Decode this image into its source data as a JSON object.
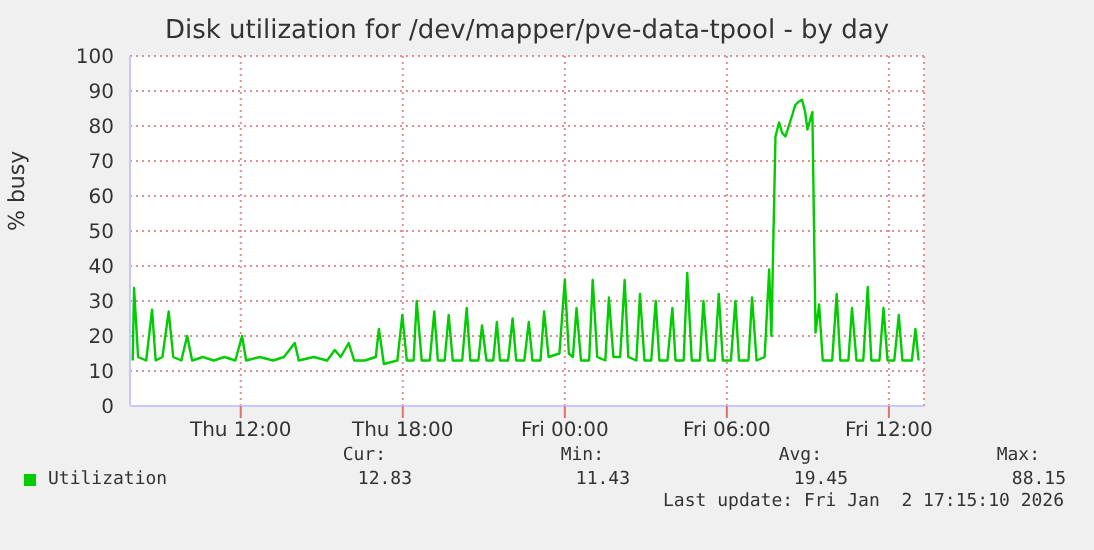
{
  "chart_data": {
    "type": "line",
    "title": "Disk utilization for /dev/mapper/pve-data-tpool - by day",
    "ylabel": "% busy",
    "xlim": [
      "2026-01-01T07:54",
      "2026-01-02T13:18"
    ],
    "xticks": [
      {
        "value": "2026-01-01T12:00",
        "label": "Thu 12:00"
      },
      {
        "value": "2026-01-01T18:00",
        "label": "Thu 18:00"
      },
      {
        "value": "2026-01-02T00:00",
        "label": "Fri 00:00"
      },
      {
        "value": "2026-01-02T06:00",
        "label": "Fri 06:00"
      },
      {
        "value": "2026-01-02T12:00",
        "label": "Fri 12:00"
      }
    ],
    "ylim": [
      0,
      100
    ],
    "yticks": [
      0,
      10,
      20,
      30,
      40,
      50,
      60,
      70,
      80,
      90,
      100
    ],
    "grid": true,
    "legend": "bottom",
    "marker": "none",
    "line_style": "solid",
    "annotations": [
      "Cur:",
      "Min:",
      "Avg:",
      "Max:",
      "12.83",
      "11.43",
      "19.45",
      "88.15",
      "Last update: Fri Jan  2 17:15:10 2026"
    ],
    "series": [
      {
        "name": "Utilization",
        "color": "#00cc00",
        "x": [
          "2026-01-01T08:00",
          "2026-01-01T08:03",
          "2026-01-01T08:12",
          "2026-01-01T08:30",
          "2026-01-01T08:43",
          "2026-01-01T08:51",
          "2026-01-01T09:06",
          "2026-01-01T09:20",
          "2026-01-01T09:30",
          "2026-01-01T09:48",
          "2026-01-01T10:01",
          "2026-01-01T10:12",
          "2026-01-01T10:36",
          "2026-01-01T11:00",
          "2026-01-01T11:24",
          "2026-01-01T11:48",
          "2026-01-01T12:03",
          "2026-01-01T12:12",
          "2026-01-01T12:42",
          "2026-01-01T13:12",
          "2026-01-01T13:36",
          "2026-01-01T14:00",
          "2026-01-01T14:09",
          "2026-01-01T14:42",
          "2026-01-01T15:12",
          "2026-01-01T15:29",
          "2026-01-01T15:42",
          "2026-01-01T16:00",
          "2026-01-01T16:12",
          "2026-01-01T16:36",
          "2026-01-01T17:00",
          "2026-01-01T17:07",
          "2026-01-01T17:18",
          "2026-01-01T17:48",
          "2026-01-01T17:59",
          "2026-01-01T18:09",
          "2026-01-01T18:24",
          "2026-01-01T18:31",
          "2026-01-01T18:42",
          "2026-01-01T19:00",
          "2026-01-01T19:10",
          "2026-01-01T19:18",
          "2026-01-01T19:33",
          "2026-01-01T19:42",
          "2026-01-01T19:51",
          "2026-01-01T20:12",
          "2026-01-01T20:22",
          "2026-01-01T20:30",
          "2026-01-01T20:48",
          "2026-01-01T20:56",
          "2026-01-01T21:06",
          "2026-01-01T21:21",
          "2026-01-01T21:29",
          "2026-01-01T21:36",
          "2026-01-01T21:54",
          "2026-01-01T22:04",
          "2026-01-01T22:12",
          "2026-01-01T22:30",
          "2026-01-01T22:40",
          "2026-01-01T22:48",
          "2026-01-01T23:06",
          "2026-01-01T23:14",
          "2026-01-01T23:24",
          "2026-01-01T23:48",
          "2026-01-02T00:00",
          "2026-01-02T00:09",
          "2026-01-02T00:18",
          "2026-01-02T00:26",
          "2026-01-02T00:36",
          "2026-01-02T00:54",
          "2026-01-02T01:02",
          "2026-01-02T01:12",
          "2026-01-02T01:30",
          "2026-01-02T01:38",
          "2026-01-02T01:48",
          "2026-01-02T02:03",
          "2026-01-02T02:13",
          "2026-01-02T02:21",
          "2026-01-02T02:39",
          "2026-01-02T02:47",
          "2026-01-02T02:57",
          "2026-01-02T03:12",
          "2026-01-02T03:22",
          "2026-01-02T03:30",
          "2026-01-02T03:48",
          "2026-01-02T03:59",
          "2026-01-02T04:06",
          "2026-01-02T04:24",
          "2026-01-02T04:32",
          "2026-01-02T04:42",
          "2026-01-02T05:00",
          "2026-01-02T05:08",
          "2026-01-02T05:18",
          "2026-01-02T05:33",
          "2026-01-02T05:42",
          "2026-01-02T05:51",
          "2026-01-02T06:09",
          "2026-01-02T06:19",
          "2026-01-02T06:27",
          "2026-01-02T06:48",
          "2026-01-02T06:56",
          "2026-01-02T07:06",
          "2026-01-02T07:24",
          "2026-01-02T07:34",
          "2026-01-02T07:39",
          "2026-01-02T07:48",
          "2026-01-02T07:56",
          "2026-01-02T08:03",
          "2026-01-02T08:10",
          "2026-01-02T08:25",
          "2026-01-02T08:32",
          "2026-01-02T08:40",
          "2026-01-02T08:47",
          "2026-01-02T08:54",
          "2026-01-02T08:59",
          "2026-01-02T09:10",
          "2026-01-02T09:17",
          "2026-01-02T09:25",
          "2026-01-02T09:33",
          "2026-01-02T09:54",
          "2026-01-02T10:04",
          "2026-01-02T10:12",
          "2026-01-02T10:30",
          "2026-01-02T10:38",
          "2026-01-02T10:48",
          "2026-01-02T11:03",
          "2026-01-02T11:13",
          "2026-01-02T11:21",
          "2026-01-02T11:39",
          "2026-01-02T11:48",
          "2026-01-02T11:57",
          "2026-01-02T12:12",
          "2026-01-02T12:22",
          "2026-01-02T12:30",
          "2026-01-02T12:51",
          "2026-01-02T12:59",
          "2026-01-02T13:06"
        ],
        "values": [
          13,
          33.7,
          14,
          13,
          27.5,
          13,
          14,
          27,
          14,
          13,
          20,
          13,
          14,
          13,
          14,
          13,
          20,
          13,
          14,
          13,
          14,
          18,
          13,
          14,
          13,
          16,
          14,
          18,
          13,
          13,
          14,
          22,
          12,
          13,
          26,
          13,
          13,
          30,
          13,
          13,
          27,
          13,
          13,
          26,
          13,
          13,
          28,
          13,
          13,
          23,
          13,
          13,
          24,
          13,
          13,
          25,
          13,
          13,
          24,
          13,
          13,
          27,
          14,
          15,
          36,
          15,
          14,
          28,
          13,
          13,
          36,
          14,
          13,
          31,
          14,
          14,
          36,
          14,
          13,
          32,
          13,
          13,
          30,
          13,
          13,
          28,
          13,
          13,
          38,
          13,
          13,
          30,
          13,
          13,
          32,
          13,
          13,
          30,
          13,
          13,
          31,
          13,
          14,
          39,
          20,
          77,
          81,
          78,
          77,
          83,
          86,
          87,
          87.5,
          84,
          79,
          84,
          21,
          29,
          13,
          13,
          32,
          13,
          13,
          28,
          13,
          13,
          34,
          13,
          13,
          28,
          13,
          13,
          26,
          13,
          13,
          22,
          13
        ]
      }
    ]
  }
}
